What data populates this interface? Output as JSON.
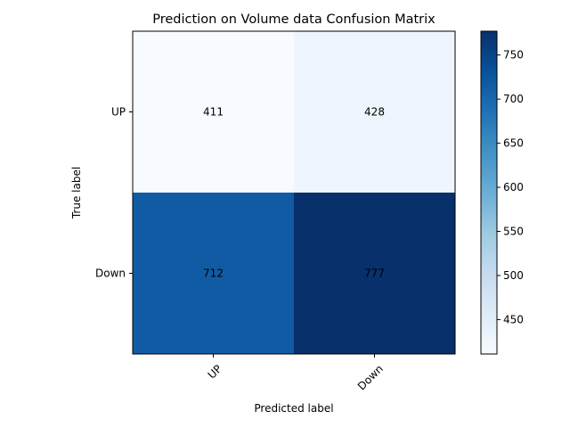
{
  "chart_data": {
    "type": "heatmap",
    "title": "Prediction on Volume data Confusion Matrix",
    "xlabel": "Predicted label",
    "ylabel": "True label",
    "x_categories": [
      "UP",
      "Down"
    ],
    "y_categories": [
      "UP",
      "Down"
    ],
    "values": [
      [
        411,
        428
      ],
      [
        712,
        777
      ]
    ],
    "colormap": "Blues",
    "colorbar": {
      "ticks": [
        450,
        500,
        550,
        600,
        650,
        700,
        750
      ],
      "range": [
        411,
        777
      ]
    },
    "colors": {
      "cell_up_up": "#f7fbff",
      "cell_up_down": "#eef5fc",
      "cell_down_up": "#105ba4",
      "cell_down_down": "#08306b"
    },
    "x_tick_rotation_deg": 45
  }
}
